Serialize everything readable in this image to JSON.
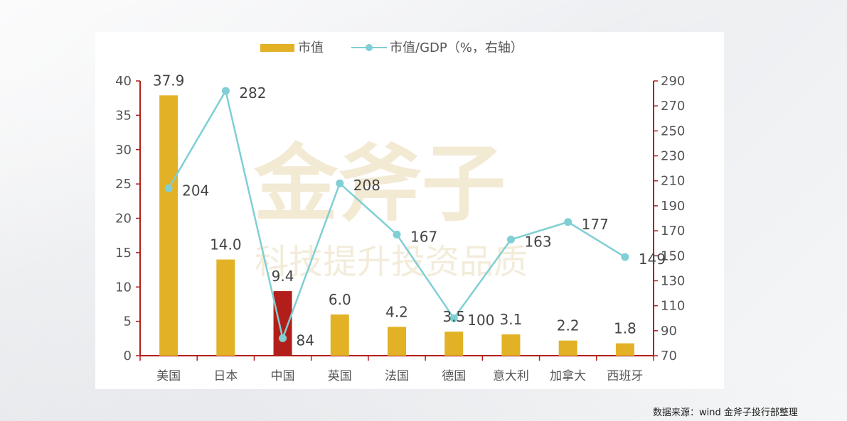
{
  "chart_data": {
    "type": "bar",
    "categories": [
      "美国",
      "日本",
      "中国",
      "英国",
      "法国",
      "德国",
      "意大利",
      "加拿大",
      "西班牙"
    ],
    "series": [
      {
        "name": "市值",
        "type": "bar",
        "axis": "left",
        "values": [
          37.9,
          14.0,
          9.4,
          6.0,
          4.2,
          3.5,
          3.1,
          2.2,
          1.8
        ],
        "labels": [
          "37.9",
          "14.0",
          "9.4",
          "6.0",
          "4.2",
          "3.5",
          "3.1",
          "2.2",
          "1.8"
        ],
        "color": "#e2b126",
        "highlight_index": 2,
        "highlight_color": "#b21f1a"
      },
      {
        "name": "市值/GDP（%，右轴）",
        "type": "line",
        "axis": "right",
        "values": [
          204,
          282,
          84,
          208,
          167,
          100,
          163,
          177,
          149
        ],
        "labels": [
          "204",
          "282",
          "84",
          "208",
          "167",
          "100",
          "163",
          "177",
          "149"
        ],
        "color": "#7fcfd4"
      }
    ],
    "left_axis": {
      "min": 0,
      "max": 40,
      "ticks": [
        0,
        5,
        10,
        15,
        20,
        25,
        30,
        35,
        40
      ]
    },
    "right_axis": {
      "min": 70,
      "max": 290,
      "ticks": [
        70,
        90,
        110,
        130,
        150,
        170,
        190,
        210,
        230,
        250,
        270,
        290
      ],
      "color": "#b21f1a"
    },
    "legend_position": "top-center",
    "grid": false
  },
  "watermark": {
    "main": "金斧子",
    "sub": "科技提升投资品质"
  },
  "source_text": "数据来源：wind 金斧子投行部整理"
}
